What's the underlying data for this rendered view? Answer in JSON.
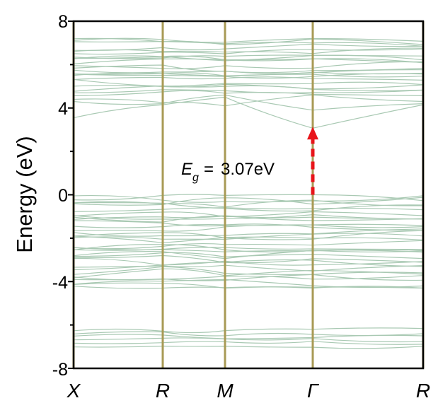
{
  "chart_data": {
    "type": "line",
    "title": "",
    "xlabel": "",
    "ylabel": "Energy (eV)",
    "ylim": [
      -8,
      8
    ],
    "yticks": [
      "8",
      "4",
      "0",
      "-4",
      "-8"
    ],
    "k_path": [
      "X",
      "R",
      "M",
      "Γ",
      "R"
    ],
    "series_color": "#a9c9b3",
    "divider_color": "#a89a55",
    "annotation": {
      "symbol": "E",
      "subscript": "g",
      "equals": "=",
      "value": "3.07eV",
      "gap_ev": 3.07,
      "from_ev": 0.0,
      "to_ev": 3.07,
      "k_point": "Γ",
      "arrow_color": "#e8141a"
    },
    "bands": {
      "valence_range": [
        -4.3,
        -0.05
      ],
      "conduction_range": [
        3.07,
        7.2
      ],
      "semicore_range": [
        -7.0,
        -6.2
      ],
      "vbm": 0.0,
      "cbm": 3.07
    }
  }
}
